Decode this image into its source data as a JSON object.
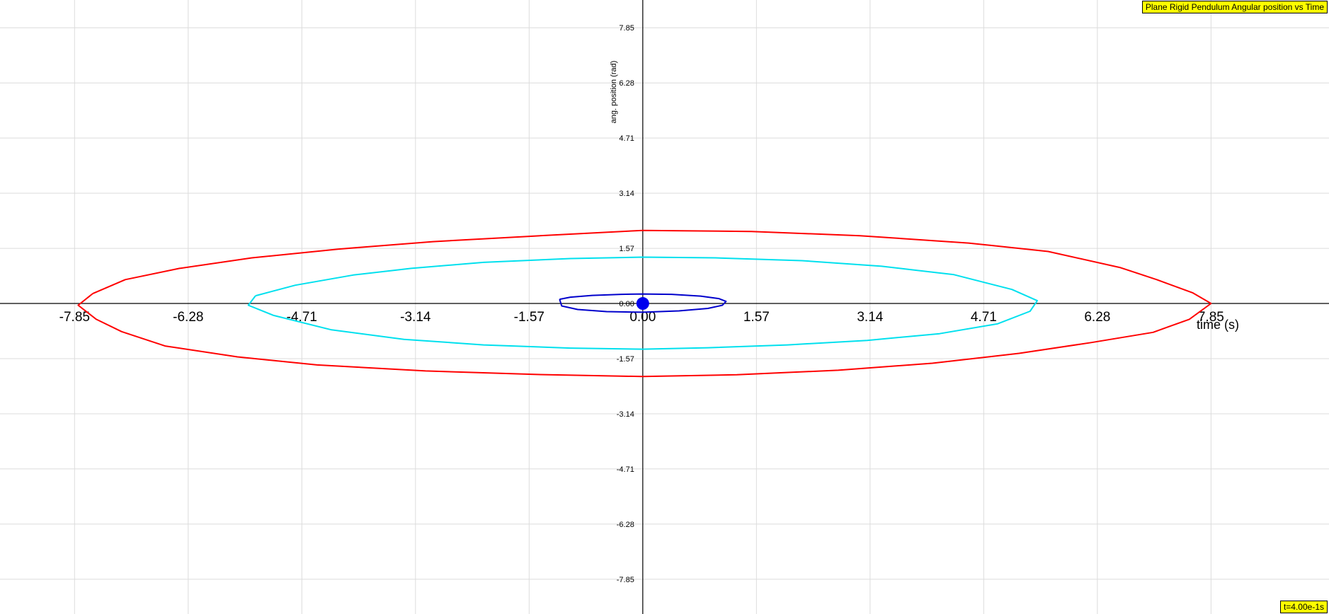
{
  "chart_data": {
    "type": "line",
    "title": "Plane Rigid Pendulum Angular position vs Time",
    "xlabel": "time (s)",
    "ylabel": "ang. position (rad)",
    "xlim": [
      -8.88,
      9.48
    ],
    "ylim": [
      -8.84,
      8.64
    ],
    "grid": true,
    "x_ticks": [
      "-7.85",
      "-6.28",
      "-4.71",
      "-3.14",
      "-1.57",
      "0.00",
      "1.57",
      "3.14",
      "4.71",
      "6.28",
      "7.85"
    ],
    "y_ticks": [
      "7.85",
      "6.28",
      "4.71",
      "3.14",
      "1.57",
      "0.00",
      "-1.57",
      "-3.14",
      "-4.71",
      "-6.28",
      "-7.85"
    ],
    "series": [
      {
        "color": "#ff0000",
        "points": [
          [
            -7.6,
            0.28
          ],
          [
            -7.15,
            0.68
          ],
          [
            -6.4,
            1.0
          ],
          [
            -5.4,
            1.3
          ],
          [
            -4.2,
            1.55
          ],
          [
            -2.9,
            1.76
          ],
          [
            -1.5,
            1.92
          ],
          [
            0,
            2.08
          ],
          [
            1.5,
            2.05
          ],
          [
            3.0,
            1.93
          ],
          [
            4.5,
            1.72
          ],
          [
            5.6,
            1.48
          ],
          [
            6.6,
            1.02
          ],
          [
            7.1,
            0.68
          ],
          [
            7.6,
            0.3
          ],
          [
            7.85,
            0
          ],
          [
            7.55,
            -0.45
          ],
          [
            7.05,
            -0.82
          ],
          [
            6.2,
            -1.11
          ],
          [
            5.2,
            -1.42
          ],
          [
            4.0,
            -1.7
          ],
          [
            2.7,
            -1.9
          ],
          [
            1.3,
            -2.03
          ],
          [
            0,
            -2.08
          ],
          [
            -1.5,
            -2.02
          ],
          [
            -3.0,
            -1.92
          ],
          [
            -4.5,
            -1.75
          ],
          [
            -5.6,
            -1.52
          ],
          [
            -6.6,
            -1.21
          ],
          [
            -7.2,
            -0.8
          ],
          [
            -7.55,
            -0.45
          ],
          [
            -7.8,
            -0.05
          ],
          [
            -7.6,
            0.28
          ]
        ]
      },
      {
        "color": "#00e0ee",
        "points": [
          [
            -5.35,
            0.22
          ],
          [
            -4.8,
            0.52
          ],
          [
            -4.0,
            0.81
          ],
          [
            -3.2,
            1.0
          ],
          [
            -2.2,
            1.17
          ],
          [
            -1.0,
            1.28
          ],
          [
            0,
            1.32
          ],
          [
            1.0,
            1.3
          ],
          [
            2.2,
            1.22
          ],
          [
            3.3,
            1.06
          ],
          [
            4.3,
            0.82
          ],
          [
            5.1,
            0.4
          ],
          [
            5.45,
            0.08
          ],
          [
            5.35,
            -0.22
          ],
          [
            4.9,
            -0.58
          ],
          [
            4.1,
            -0.86
          ],
          [
            3.1,
            -1.05
          ],
          [
            2.0,
            -1.18
          ],
          [
            0.9,
            -1.26
          ],
          [
            0,
            -1.3
          ],
          [
            -1.0,
            -1.27
          ],
          [
            -2.2,
            -1.18
          ],
          [
            -3.3,
            -1.02
          ],
          [
            -4.3,
            -0.75
          ],
          [
            -5.1,
            -0.34
          ],
          [
            -5.45,
            -0.05
          ],
          [
            -5.35,
            0.22
          ]
        ]
      },
      {
        "color": "#0000cc",
        "points": [
          [
            -1.15,
            0.12
          ],
          [
            -1.0,
            0.18
          ],
          [
            -0.7,
            0.23
          ],
          [
            -0.3,
            0.26
          ],
          [
            0,
            0.27
          ],
          [
            0.4,
            0.26
          ],
          [
            0.8,
            0.21
          ],
          [
            1.05,
            0.14
          ],
          [
            1.15,
            0.06
          ],
          [
            1.1,
            -0.05
          ],
          [
            0.9,
            -0.14
          ],
          [
            0.5,
            -0.21
          ],
          [
            0,
            -0.25
          ],
          [
            -0.5,
            -0.23
          ],
          [
            -0.9,
            -0.17
          ],
          [
            -1.12,
            -0.07
          ],
          [
            -1.15,
            0.12
          ]
        ]
      }
    ],
    "current_point": {
      "x": 0.0,
      "y": 0.0,
      "color": "#0000ee"
    }
  },
  "badges": {
    "title": "Plane Rigid Pendulum Angular position vs Time",
    "time": "t=4.00e-1s"
  }
}
